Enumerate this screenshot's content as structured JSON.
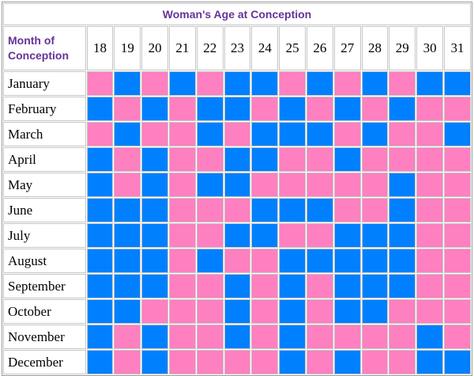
{
  "title": "Woman's Age at Conception",
  "row_header": "Month of Conception",
  "ages": [
    "18",
    "19",
    "20",
    "21",
    "22",
    "23",
    "24",
    "25",
    "26",
    "27",
    "28",
    "29",
    "30",
    "31"
  ],
  "months": [
    "January",
    "February",
    "March",
    "April",
    "May",
    "June",
    "July",
    "August",
    "September",
    "October",
    "November",
    "December"
  ],
  "colors": {
    "P": "#FF80C0",
    "B": "#0080FF",
    "header_text": "#663399",
    "grid_border": "#c6c6c6",
    "outer_border": "#9a9a9a"
  },
  "chart_data": {
    "type": "heatmap",
    "title": "Woman's Age at Conception",
    "x_label": "Woman's Age at Conception",
    "y_label": "Month of Conception",
    "x": [
      18,
      19,
      20,
      21,
      22,
      23,
      24,
      25,
      26,
      27,
      28,
      29,
      30,
      31
    ],
    "y": [
      "January",
      "February",
      "March",
      "April",
      "May",
      "June",
      "July",
      "August",
      "September",
      "October",
      "November",
      "December"
    ],
    "legend": {
      "P": "pink #FF80C0",
      "B": "blue #0080FF"
    },
    "values": [
      [
        "P",
        "B",
        "P",
        "B",
        "P",
        "B",
        "B",
        "P",
        "B",
        "P",
        "B",
        "P",
        "B",
        "B"
      ],
      [
        "B",
        "P",
        "B",
        "P",
        "B",
        "B",
        "P",
        "B",
        "P",
        "B",
        "P",
        "B",
        "P",
        "P"
      ],
      [
        "P",
        "B",
        "P",
        "P",
        "B",
        "P",
        "B",
        "B",
        "B",
        "P",
        "B",
        "P",
        "P",
        "B"
      ],
      [
        "B",
        "P",
        "B",
        "P",
        "P",
        "B",
        "B",
        "P",
        "P",
        "B",
        "P",
        "P",
        "P",
        "P"
      ],
      [
        "B",
        "P",
        "B",
        "P",
        "B",
        "B",
        "P",
        "P",
        "P",
        "P",
        "P",
        "B",
        "P",
        "P"
      ],
      [
        "B",
        "B",
        "B",
        "P",
        "P",
        "P",
        "B",
        "B",
        "B",
        "P",
        "P",
        "B",
        "P",
        "P"
      ],
      [
        "B",
        "B",
        "B",
        "P",
        "P",
        "B",
        "B",
        "P",
        "P",
        "B",
        "B",
        "B",
        "P",
        "P"
      ],
      [
        "B",
        "B",
        "B",
        "P",
        "B",
        "P",
        "P",
        "B",
        "B",
        "B",
        "B",
        "B",
        "P",
        "P"
      ],
      [
        "B",
        "B",
        "B",
        "P",
        "P",
        "B",
        "P",
        "B",
        "P",
        "B",
        "B",
        "B",
        "P",
        "P"
      ],
      [
        "B",
        "B",
        "P",
        "P",
        "P",
        "B",
        "P",
        "B",
        "P",
        "B",
        "B",
        "P",
        "P",
        "P"
      ],
      [
        "B",
        "P",
        "B",
        "P",
        "P",
        "B",
        "P",
        "B",
        "P",
        "P",
        "P",
        "P",
        "B",
        "P"
      ],
      [
        "B",
        "P",
        "B",
        "P",
        "P",
        "P",
        "P",
        "B",
        "P",
        "B",
        "P",
        "P",
        "B",
        "B"
      ]
    ]
  }
}
